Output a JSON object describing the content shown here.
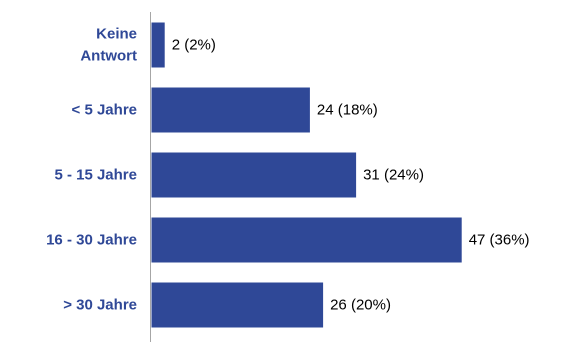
{
  "chart_data": {
    "type": "bar",
    "orientation": "horizontal",
    "categories": [
      [
        "Keine",
        "Antwort"
      ],
      [
        "< 5 Jahre"
      ],
      [
        "5 - 15 Jahre"
      ],
      [
        "16 - 30 Jahre"
      ],
      [
        "> 30 Jahre"
      ]
    ],
    "values": [
      2,
      24,
      31,
      47,
      26
    ],
    "data_labels": [
      "2 (2%)",
      "24 (18%)",
      "31 (24%)",
      "47 (36%)",
      "26 (20%)"
    ],
    "xlim": [
      0,
      50
    ],
    "grid": false,
    "legend": "none",
    "title": "",
    "xlabel": "",
    "ylabel": "",
    "colors": {
      "bar": "#2f4897",
      "category_text": "#2f4897",
      "value_text": "#000000",
      "axis": "#a6a6a6"
    }
  }
}
